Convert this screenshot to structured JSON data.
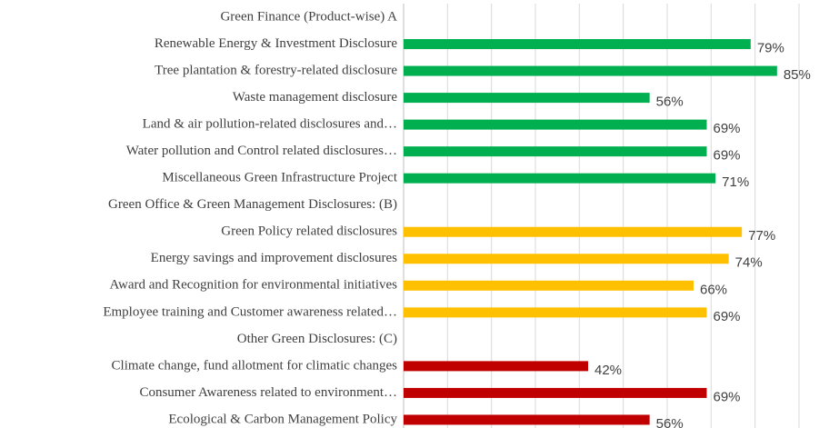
{
  "chart_data": {
    "type": "bar",
    "orientation": "horizontal",
    "categories": [
      "Green Finance (Product-wise)  A",
      "Renewable Energy & Investment Disclosure",
      "Tree plantation & forestry-related disclosure",
      "Waste management disclosure",
      "Land & air pollution-related disclosures and…",
      "Water pollution and Control related disclosures…",
      "Miscellaneous Green Infrastructure Project",
      "Green Office & Green Management  Disclosures:  (B)",
      "Green Policy related disclosures",
      "Energy savings and improvement disclosures",
      "Award and Recognition for environmental initiatives",
      "Employee training and Customer awareness related…",
      "Other Green Disclosures: (C)",
      "Climate change, fund allotment for climatic changes",
      "Consumer Awareness related to environment…",
      "Ecological & Carbon Management Policy"
    ],
    "values": [
      null,
      79,
      85,
      56,
      69,
      69,
      71,
      null,
      77,
      74,
      66,
      69,
      null,
      42,
      69,
      56
    ],
    "value_labels": [
      null,
      "79%",
      "85%",
      "56%",
      "69%",
      "69%",
      "71%",
      null,
      "77%",
      "74%",
      "66%",
      "69%",
      null,
      "42%",
      "69%",
      "56%"
    ],
    "colors": [
      null,
      "#00b050",
      "#00b050",
      "#00b050",
      "#00b050",
      "#00b050",
      "#00b050",
      null,
      "#ffc000",
      "#ffc000",
      "#ffc000",
      "#ffc000",
      null,
      "#c00000",
      "#c00000",
      "#c00000"
    ],
    "xlim": [
      0,
      90
    ],
    "xticks": [
      0,
      10,
      20,
      30,
      40,
      50,
      60,
      70,
      80,
      90
    ],
    "grid": true
  }
}
